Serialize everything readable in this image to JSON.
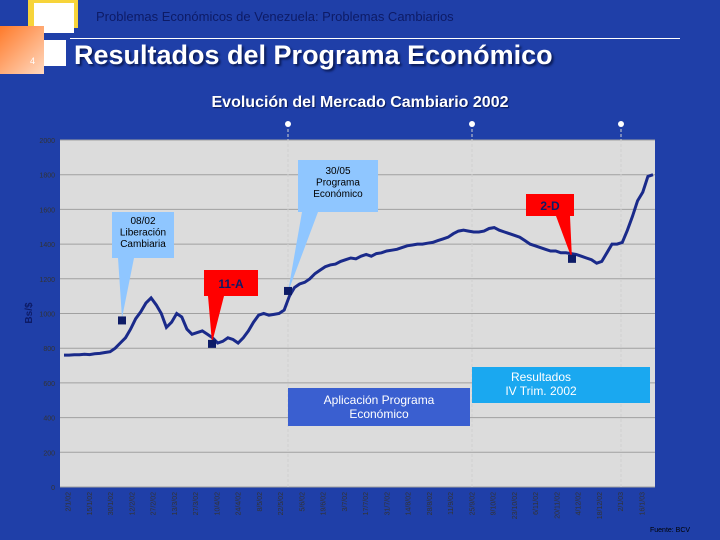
{
  "header": {
    "subtitle": "Problemas Económicos de Venezuela: Problemas Cambiarios",
    "title": "Resultados del Programa Económico",
    "slide_number": "4"
  },
  "source": "Fuente: BCV",
  "colors": {
    "background": "#1f3fa8",
    "plot_area": "#dcdcdc",
    "series": "#1a2a8a",
    "callout": "#8fc6ff",
    "highlight": "#ff0000",
    "band": "#3a5fd0",
    "results_box": "#1aa8f0"
  },
  "chart_data": {
    "type": "line",
    "title": "Evolución del Mercado Cambiario 2002",
    "ylabel": "Bs/$",
    "xlabel": "",
    "ylim": [
      0,
      2000
    ],
    "yticks": [
      0,
      200,
      400,
      600,
      800,
      1000,
      1200,
      1400,
      1600,
      1800,
      2000
    ],
    "xticks": [
      "2/1/02",
      "15/1/02",
      "30/1/02",
      "12/2/02",
      "27/2/02",
      "13/3/02",
      "27/3/02",
      "10/4/02",
      "24/4/02",
      "8/5/02",
      "22/5/02",
      "5/6/02",
      "19/6/02",
      "3/7/02",
      "17/7/02",
      "31/7/02",
      "14/8/02",
      "28/8/02",
      "11/9/02",
      "25/9/02",
      "9/10/02",
      "23/10/02",
      "6/11/02",
      "20/11/02",
      "4/12/02",
      "18/12/02",
      "2/1/03",
      "16/1/03"
    ],
    "grid": true,
    "series": [
      {
        "values": [
          760,
          760,
          762,
          762,
          765,
          763,
          768,
          770,
          775,
          780,
          800,
          830,
          860,
          910,
          970,
          1010,
          1060,
          1090,
          1050,
          1000,
          920,
          950,
          1000,
          980,
          910,
          880,
          890,
          900,
          880,
          860,
          830,
          840,
          860,
          850,
          830,
          860,
          900,
          950,
          990,
          1000,
          990,
          995,
          1000,
          1020,
          1100,
          1150,
          1170,
          1180,
          1200,
          1230,
          1250,
          1270,
          1280,
          1285,
          1300,
          1310,
          1320,
          1315,
          1330,
          1340,
          1330,
          1345,
          1350,
          1360,
          1365,
          1370,
          1380,
          1390,
          1395,
          1400,
          1400,
          1405,
          1410,
          1420,
          1430,
          1440,
          1460,
          1475,
          1480,
          1475,
          1470,
          1470,
          1475,
          1490,
          1495,
          1480,
          1470,
          1460,
          1450,
          1440,
          1420,
          1400,
          1390,
          1380,
          1370,
          1360,
          1360,
          1350,
          1350,
          1345,
          1340,
          1330,
          1320,
          1310,
          1290,
          1300,
          1350,
          1400,
          1400,
          1410,
          1480,
          1560,
          1650,
          1700,
          1790,
          1800
        ]
      }
    ],
    "markers": [
      {
        "label": "08/02",
        "value": 960
      },
      {
        "label": "11-A",
        "value": 825
      },
      {
        "label": "30/05",
        "value": 1130
      },
      {
        "label": "2-D",
        "value": 1315
      }
    ],
    "annotations": {
      "liberacion": "08/02\nLiberación\nCambiaria",
      "programa": "30/05\nPrograma\nEconómico",
      "abril": "11-A",
      "diciembre": "2-D",
      "aplicacion": "Aplicación Programa\nEconómico",
      "resultados": "Resultados\nIV Trim. 2002"
    }
  }
}
